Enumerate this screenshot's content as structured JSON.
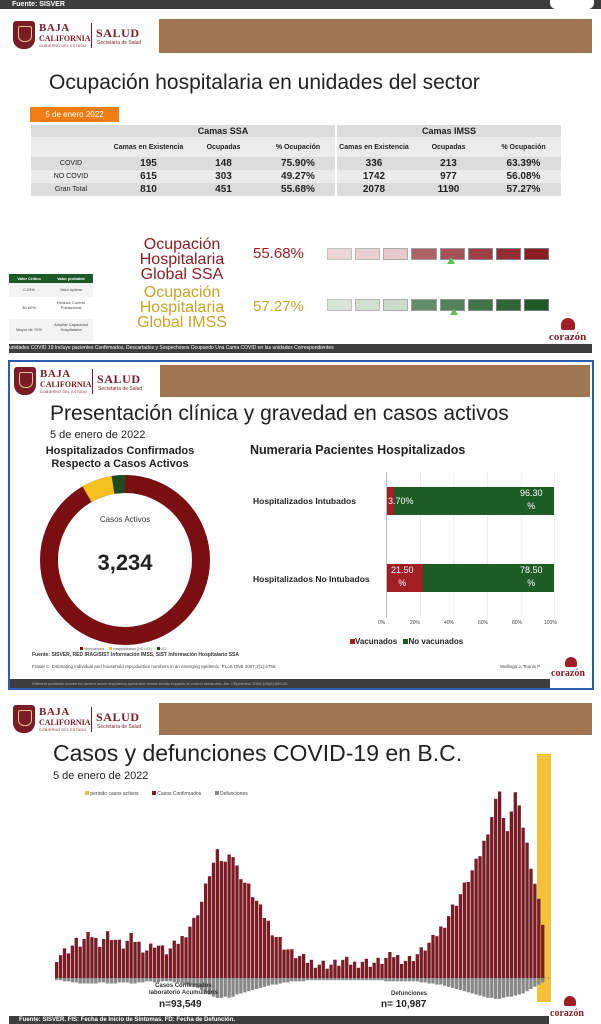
{
  "top_strip": {
    "text": "Fuente: SISVER"
  },
  "brand": {
    "baja": "BAJA",
    "california": "CALIFORNIA",
    "gobierno": "GOBIERNO DEL ESTADO",
    "salud": "SALUD",
    "secretaria": "Secretaría de Salud",
    "corazon_small": "Con el",
    "corazon": "corazón",
    "corazon_sub": "por delante"
  },
  "slide1": {
    "title": "Ocupación hospitalaria en unidades del sector",
    "date": "5 de enero 2022",
    "group_ssa": "Camas SSA",
    "group_imss": "Camas IMSS",
    "col_headers": [
      "Camas en Existencia",
      "Ocupadas",
      "% Ocupación",
      "Camas en Existencia",
      "Ocupadas",
      "% Ocupación"
    ],
    "rows": [
      {
        "label": "COVID",
        "cells": [
          "195",
          "148",
          "75.90%",
          "336",
          "213",
          "63.39%"
        ]
      },
      {
        "label": "NO COVID",
        "cells": [
          "615",
          "303",
          "49.27%",
          "1742",
          "977",
          "56.08%"
        ]
      },
      {
        "label": "Gran Total",
        "cells": [
          "810",
          "451",
          "55.68%",
          "2078",
          "1190",
          "57.27%"
        ]
      }
    ],
    "ssa_label": [
      "Ocupación",
      "Hospitalaria",
      "Global SSA"
    ],
    "ssa_value": "55.68%",
    "imss_label": [
      "Ocupación",
      "Hospitalaria",
      "Global IMSS"
    ],
    "imss_value": "57.27%",
    "ssa_fill": 0.5568,
    "imss_fill": 0.5727,
    "legend_table": {
      "head": [
        "Valor Crítico",
        "Valor probable"
      ],
      "rows": [
        [
          "0-29%",
          "Valor óptimo"
        ],
        [
          "30-60%",
          "Reducir Control Poblacional"
        ],
        [
          "Mayor de 70%",
          "Ampliar Capacidad Hospitalaria"
        ]
      ]
    },
    "footnote": "unidades COVID 19 Incluye pacientes Confirmados, Descartados y Sospechosos Ocupando Una Cama COVID en las unidades Correspondientes",
    "colors": {
      "red": "#a01e24",
      "green": "#1e5a28",
      "gold": "#c9a227"
    }
  },
  "slide2": {
    "title": "Presentación clínica y gravedad en casos activos",
    "date": "5 de enero de 2022",
    "donut_title": [
      "Hospitalizados Confirmados",
      "Respecto a Casos Activos"
    ],
    "donut_center_label": "Casos Activos",
    "donut_center_value": "3,234",
    "donut_legend": [
      "Ambulatorios",
      "Hospitalizados (NO UCI)",
      "UCI"
    ],
    "bar_title": "Numeraria Pacientes Hospitalizados",
    "bar_rows": [
      {
        "label": "Hospitalizados Intubados",
        "vac_text": "3.70%",
        "novac_text": [
          "96.30",
          "%"
        ]
      },
      {
        "label": "Hospitalizados No Intubados",
        "vac_text": [
          "21.50",
          "%"
        ],
        "novac_text": [
          "78.50",
          "%"
        ]
      }
    ],
    "axis_ticks": [
      "0%",
      "20%",
      "40%",
      "60%",
      "80%",
      "100%"
    ],
    "legend_vac": "Vacunados",
    "legend_novac": "No vacunados",
    "source": "Fuente: SISVER, RED IRAG/SIST Información IMSS, SIST Información Hospitalario SSA",
    "citation": "Fraser C. Estimating individual and household reproduction numbers in an emerging epidemic. PLoS ONE 2007;2(1):e758.",
    "citation_right": "Wallinga J, Teunis P.",
    "footer": "Different epidemic curves for severe acute respiratory syndrome reveal similar impacts of control measures. Am J Epidemiol 2004;160(6):509-16"
  },
  "slide3": {
    "title": "Casos y defunciones COVID-19 en B.C.",
    "date": "5 de enero de 2022",
    "legend": [
      "periodo casos activos",
      "Casos Confirmados",
      "Defunciones"
    ],
    "cases_label": [
      "Casos Confirmados",
      "laboratorio Acumulados"
    ],
    "cases_value": "n=93,549",
    "deaths_label": "Defunciones",
    "deaths_value": "n= 10,987",
    "footer": "Fuente: SISVER. FIS: Fecha de Inicio de Síntomas. FD: Fecha de Defunción.",
    "colors": {
      "cases": "#7a1c25",
      "deaths": "#888888",
      "active": "#f2c33a"
    }
  },
  "chart_data": {
    "type": "bar",
    "title": "Casos y defunciones COVID-19 en B.C.",
    "series": [
      {
        "name": "Casos Confirmados",
        "values": [
          22,
          25,
          28,
          30,
          34,
          38,
          36,
          40,
          43,
          45,
          40,
          38,
          42,
          46,
          44,
          40,
          36,
          34,
          38,
          42,
          40,
          36,
          32,
          30,
          33,
          36,
          34,
          30,
          28,
          30,
          34,
          38,
          42,
          48,
          55,
          60,
          70,
          80,
          95,
          110,
          120,
          130,
          125,
          120,
          135,
          128,
          115,
          108,
          100,
          95,
          88,
          80,
          72,
          65,
          58,
          50,
          44,
          40,
          34,
          30,
          26,
          24,
          22,
          20,
          18,
          17,
          16,
          15,
          15,
          14,
          14,
          15,
          16,
          18,
          17,
          16,
          15,
          16,
          18,
          17,
          16,
          16,
          17,
          18,
          20,
          22,
          24,
          22,
          20,
          19,
          20,
          22,
          25,
          28,
          32,
          36,
          40,
          46,
          52,
          58,
          66,
          74,
          80,
          88,
          96,
          104,
          112,
          120,
          130,
          142,
          156,
          170,
          185,
          200,
          168,
          150,
          178,
          194,
          176,
          160,
          140,
          120,
          100,
          80,
          60
        ]
      },
      {
        "name": "Defunciones",
        "values": [
          2,
          2,
          3,
          3,
          4,
          4,
          5,
          5,
          5,
          5,
          5,
          4,
          4,
          5,
          5,
          5,
          4,
          4,
          4,
          5,
          5,
          4,
          4,
          3,
          3,
          4,
          4,
          3,
          3,
          3,
          4,
          4,
          5,
          6,
          7,
          8,
          9,
          11,
          13,
          15,
          17,
          18,
          18,
          17,
          18,
          17,
          15,
          14,
          13,
          12,
          11,
          10,
          9,
          8,
          7,
          6,
          6,
          5,
          4,
          4,
          3,
          3,
          3,
          3,
          2,
          2,
          2,
          2,
          2,
          2,
          2,
          2,
          2,
          2,
          2,
          2,
          2,
          2,
          2,
          2,
          2,
          2,
          2,
          2,
          3,
          3,
          3,
          3,
          3,
          3,
          3,
          3,
          3,
          4,
          4,
          5,
          5,
          6,
          6,
          7,
          8,
          9,
          10,
          11,
          12,
          13,
          14,
          15,
          16,
          17,
          18,
          18,
          19,
          19,
          18,
          17,
          17,
          16,
          15,
          14,
          12,
          10,
          8,
          6,
          4
        ]
      }
    ],
    "legend": [
      "periodo casos activos",
      "Casos Confirmados",
      "Defunciones"
    ],
    "xlabel": "",
    "ylabel": ""
  }
}
